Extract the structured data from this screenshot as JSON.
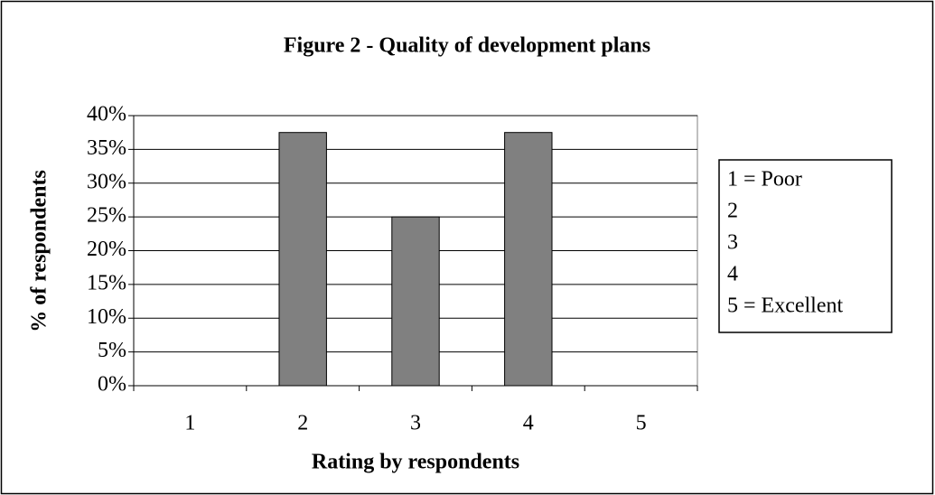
{
  "chart_data": {
    "type": "bar",
    "title": "Figure 2 - Quality of development plans",
    "x_label": "Rating by respondents",
    "y_label": "% of respondents",
    "categories": [
      "1",
      "2",
      "3",
      "4",
      "5"
    ],
    "values": [
      0,
      37.5,
      25,
      37.5,
      0
    ],
    "color": "#808080",
    "ylim": [
      0,
      40
    ],
    "yticks": [
      {
        "value": 0,
        "label": "0%"
      },
      {
        "value": 5,
        "label": "5%"
      },
      {
        "value": 10,
        "label": "10%"
      },
      {
        "value": 15,
        "label": "15%"
      },
      {
        "value": 20,
        "label": "20%"
      },
      {
        "value": 25,
        "label": "25%"
      },
      {
        "value": 30,
        "label": "30%"
      },
      {
        "value": 35,
        "label": "35%"
      },
      {
        "value": 40,
        "label": "40%"
      }
    ],
    "grid": true,
    "legend": [
      "1 = Poor",
      "2",
      "3",
      "4",
      "5 = Excellent"
    ]
  }
}
